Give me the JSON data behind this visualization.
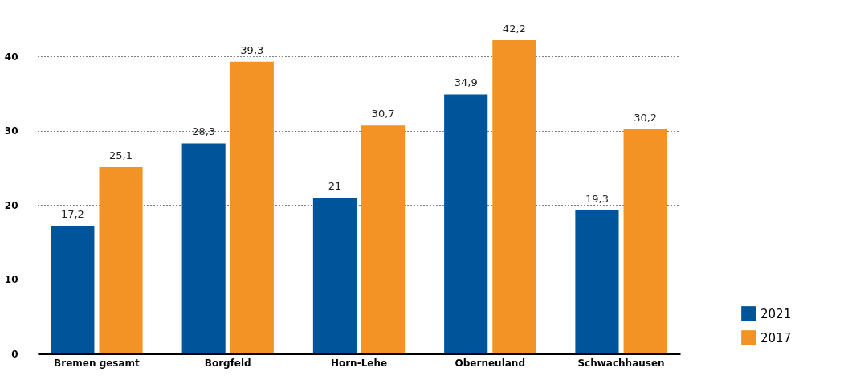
{
  "chart_data": {
    "type": "bar",
    "categories": [
      "Bremen gesamt",
      "Borgfeld",
      "Horn-Lehe",
      "Oberneuland",
      "Schwachhausen"
    ],
    "series": [
      {
        "name": "2021",
        "color": "#00559a",
        "values": [
          17.2,
          28.3,
          21,
          34.9,
          19.3
        ],
        "value_labels": [
          "17,2",
          "28,3",
          "21",
          "34,9",
          "19,3"
        ]
      },
      {
        "name": "2017",
        "color": "#f39325",
        "values": [
          25.1,
          39.3,
          30.7,
          42.2,
          30.2
        ],
        "value_labels": [
          "25,1",
          "39,3",
          "30,7",
          "42,2",
          "30,2"
        ]
      }
    ],
    "ylim": [
      0,
      42.2
    ],
    "yticks": [
      0,
      10,
      20,
      30,
      40
    ],
    "grid": "y",
    "legend": "bottom right"
  }
}
